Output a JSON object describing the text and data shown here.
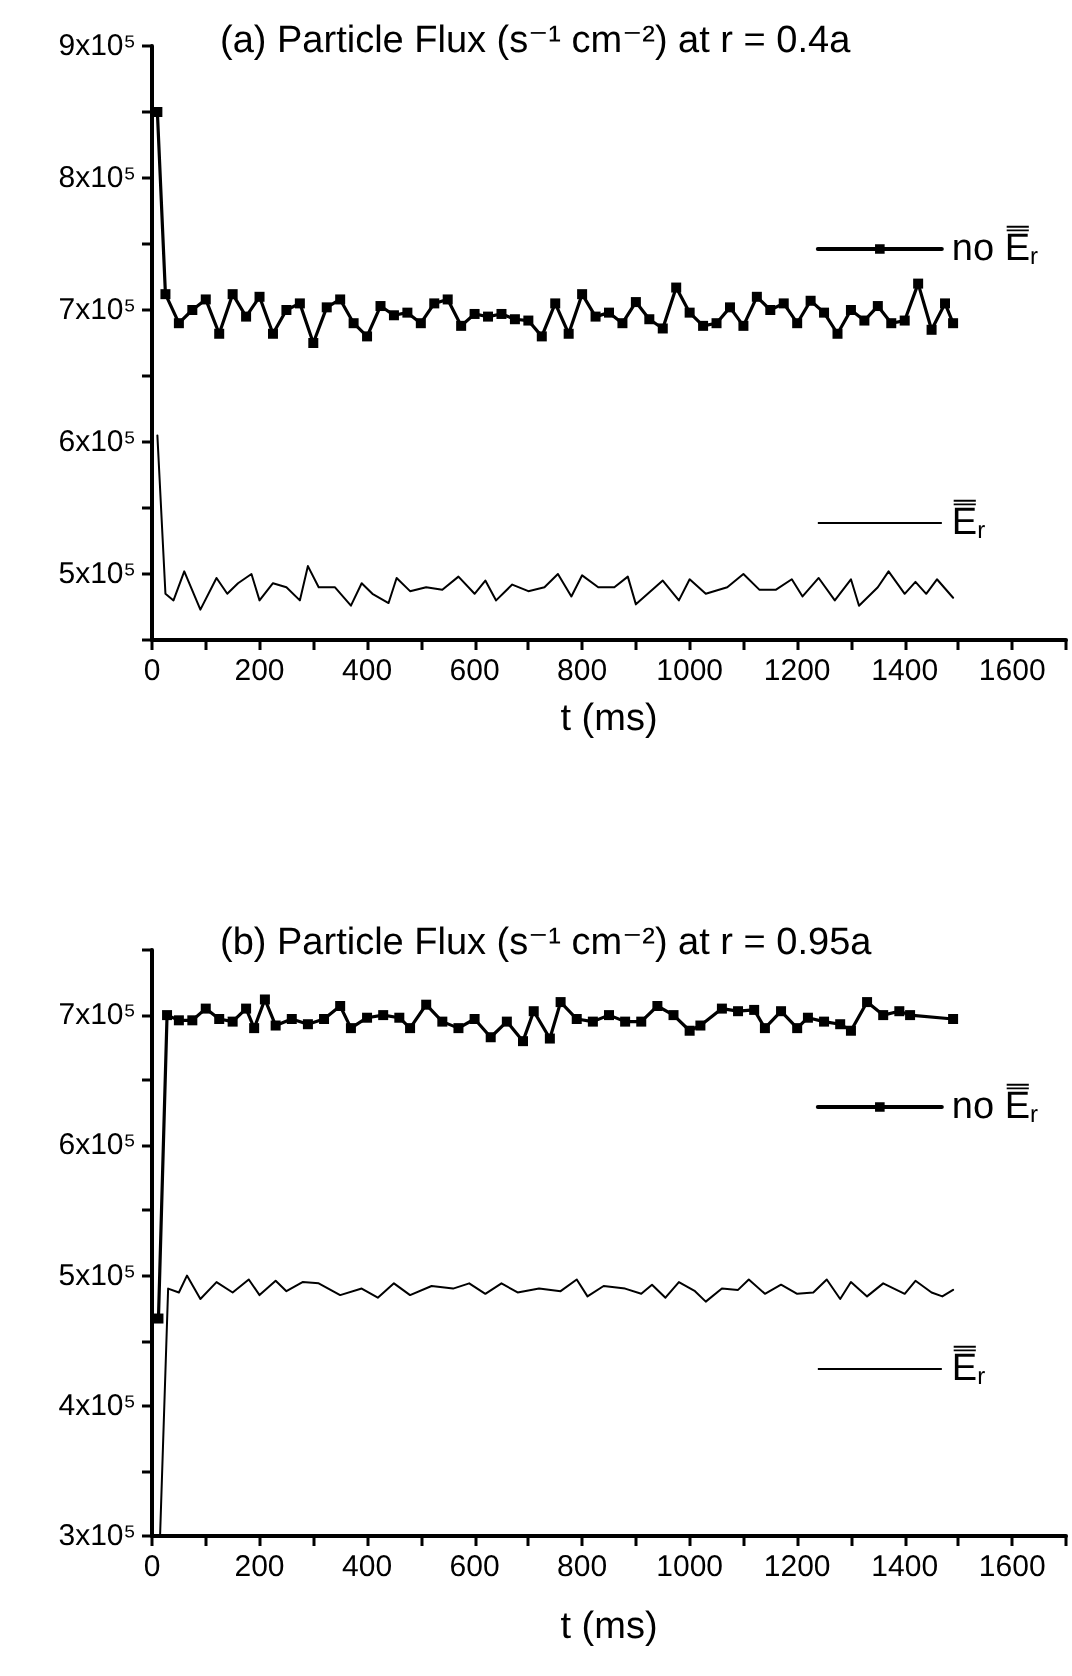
{
  "chart_data": [
    {
      "type": "line",
      "title": "(a) Particle Flux (s⁻¹ cm⁻²) at r = 0.4a",
      "xlabel": "t (ms)",
      "xlim": [
        0,
        1700
      ],
      "xticks": [
        0,
        {
          "value": 100,
          "label": null
        },
        200,
        {
          "value": 300,
          "label": null
        },
        400,
        {
          "value": 500,
          "label": null
        },
        600,
        {
          "value": 700,
          "label": null
        },
        800,
        {
          "value": 900,
          "label": null
        },
        1000,
        {
          "value": 1100,
          "label": null
        },
        1200,
        {
          "value": 1300,
          "label": null
        },
        1400,
        {
          "value": 1500,
          "label": null
        },
        1600,
        {
          "value": 1700,
          "label": null
        }
      ],
      "ylim": [
        450000,
        900000
      ],
      "yticks": [
        {
          "value": 450000,
          "label": null
        },
        {
          "value": 500000,
          "label": "5x10⁵"
        },
        {
          "value": 550000,
          "label": null
        },
        {
          "value": 600000,
          "label": "6x10⁵"
        },
        {
          "value": 650000,
          "label": null
        },
        {
          "value": 700000,
          "label": "7x10⁵"
        },
        {
          "value": 750000,
          "label": null
        },
        {
          "value": 800000,
          "label": "8x10⁵"
        },
        {
          "value": 850000,
          "label": null
        },
        {
          "value": 900000,
          "label": "9x10⁵"
        }
      ],
      "grid": false,
      "legend": "right",
      "series": [
        {
          "name": "no E̿$_{r}$",
          "color": "#000000",
          "marker": "square",
          "line_style": "solid",
          "x": [
            10,
            25,
            50,
            75,
            100,
            125,
            150,
            175,
            200,
            225,
            250,
            275,
            300,
            325,
            350,
            375,
            400,
            425,
            450,
            475,
            500,
            525,
            550,
            575,
            600,
            625,
            650,
            675,
            700,
            725,
            750,
            775,
            800,
            825,
            850,
            875,
            900,
            925,
            950,
            975,
            1000,
            1025,
            1050,
            1075,
            1100,
            1125,
            1150,
            1175,
            1200,
            1225,
            1250,
            1275,
            1300,
            1325,
            1350,
            1375,
            1400,
            1425,
            1450,
            1475,
            1490
          ],
          "values": [
            850000,
            712000,
            690000,
            700000,
            708000,
            682000,
            712000,
            695000,
            710000,
            682000,
            700000,
            705000,
            675000,
            702000,
            708000,
            690000,
            680000,
            703000,
            696000,
            698000,
            690000,
            705000,
            708000,
            688000,
            697000,
            695000,
            697000,
            693000,
            692000,
            680000,
            705000,
            682000,
            712000,
            695000,
            698000,
            690000,
            706000,
            693000,
            686000,
            717000,
            698000,
            688000,
            690000,
            702000,
            688000,
            710000,
            700000,
            705000,
            690000,
            707000,
            698000,
            682000,
            700000,
            692000,
            703000,
            690000,
            692000,
            720000,
            685000,
            705000,
            690000
          ]
        },
        {
          "name": "E̿$_{r}$",
          "color": "#000000",
          "marker": "none",
          "line_style": "solid",
          "x": [
            10,
            25,
            40,
            60,
            90,
            120,
            140,
            160,
            185,
            200,
            225,
            250,
            275,
            290,
            310,
            340,
            370,
            390,
            410,
            440,
            455,
            480,
            510,
            540,
            570,
            600,
            620,
            640,
            670,
            700,
            730,
            755,
            780,
            800,
            830,
            860,
            885,
            900,
            950,
            980,
            1000,
            1030,
            1070,
            1100,
            1130,
            1160,
            1190,
            1210,
            1240,
            1270,
            1300,
            1315,
            1350,
            1370,
            1400,
            1420,
            1440,
            1460,
            1490
          ],
          "values": [
            605000,
            485000,
            480000,
            502000,
            473000,
            497000,
            485000,
            493000,
            500000,
            480000,
            493000,
            490000,
            480000,
            506000,
            490000,
            490000,
            476000,
            493000,
            485000,
            478000,
            497000,
            487000,
            490000,
            488000,
            498000,
            485000,
            495000,
            480000,
            492000,
            487000,
            490000,
            500000,
            483000,
            499000,
            490000,
            490000,
            498000,
            477000,
            495000,
            480000,
            496000,
            485000,
            490000,
            500000,
            488000,
            488000,
            496000,
            483000,
            497000,
            480000,
            496000,
            476000,
            490000,
            502000,
            485000,
            494000,
            485000,
            496000,
            482000
          ]
        }
      ]
    },
    {
      "type": "line",
      "title": "(b) Particle Flux (s⁻¹ cm⁻²) at r = 0.95a",
      "xlabel": "t (ms)",
      "xlim": [
        0,
        1700
      ],
      "xticks": [
        0,
        {
          "value": 100,
          "label": null
        },
        200,
        {
          "value": 300,
          "label": null
        },
        400,
        {
          "value": 500,
          "label": null
        },
        600,
        {
          "value": 700,
          "label": null
        },
        800,
        {
          "value": 900,
          "label": null
        },
        1000,
        {
          "value": 1100,
          "label": null
        },
        1200,
        {
          "value": 1300,
          "label": null
        },
        1400,
        {
          "value": 1500,
          "label": null
        },
        1600,
        {
          "value": 1700,
          "label": null
        }
      ],
      "ylim": [
        300000,
        750000
      ],
      "yticks": [
        {
          "value": 300000,
          "label": "3x10⁵"
        },
        {
          "value": 350000,
          "label": null
        },
        {
          "value": 400000,
          "label": "4x10⁵"
        },
        {
          "value": 450000,
          "label": null
        },
        {
          "value": 500000,
          "label": "5x10⁵"
        },
        {
          "value": 550000,
          "label": null
        },
        {
          "value": 600000,
          "label": "6x10⁵"
        },
        {
          "value": 650000,
          "label": null
        },
        {
          "value": 700000,
          "label": "7x10⁵"
        },
        {
          "value": 750000,
          "label": null
        }
      ],
      "grid": false,
      "legend": "right",
      "series": [
        {
          "name": "no E̿$_{r}$",
          "color": "#000000",
          "marker": "square",
          "line_style": "solid",
          "x": [
            12,
            28,
            50,
            75,
            100,
            125,
            150,
            175,
            190,
            210,
            230,
            260,
            290,
            320,
            350,
            370,
            400,
            430,
            460,
            480,
            510,
            540,
            570,
            600,
            630,
            660,
            690,
            710,
            740,
            760,
            790,
            820,
            850,
            880,
            910,
            940,
            970,
            1000,
            1020,
            1060,
            1090,
            1120,
            1140,
            1170,
            1200,
            1220,
            1250,
            1280,
            1300,
            1330,
            1360,
            1390,
            1410,
            1490
          ],
          "values": [
            467000,
            700000,
            696000,
            696000,
            705000,
            697000,
            695000,
            705000,
            690000,
            712000,
            692000,
            697000,
            693000,
            697000,
            707000,
            690000,
            698000,
            700000,
            698000,
            690000,
            708000,
            695000,
            690000,
            697000,
            683000,
            695000,
            680000,
            703000,
            682000,
            710000,
            697000,
            695000,
            700000,
            695000,
            695000,
            707000,
            700000,
            688000,
            692000,
            705000,
            703000,
            704000,
            690000,
            703000,
            690000,
            698000,
            695000,
            693000,
            688000,
            710000,
            700000,
            703000,
            700000,
            697000
          ]
        },
        {
          "name": "E̿$_{r}$",
          "color": "#000000",
          "marker": "none",
          "line_style": "solid",
          "x": [
            15,
            30,
            50,
            65,
            90,
            120,
            150,
            180,
            200,
            230,
            250,
            280,
            310,
            350,
            390,
            420,
            450,
            480,
            520,
            560,
            590,
            620,
            650,
            680,
            720,
            760,
            790,
            810,
            840,
            880,
            910,
            930,
            955,
            980,
            1010,
            1030,
            1060,
            1090,
            1110,
            1140,
            1170,
            1200,
            1230,
            1255,
            1280,
            1300,
            1330,
            1360,
            1400,
            1420,
            1450,
            1470,
            1490
          ],
          "values": [
            300000,
            490000,
            487000,
            500000,
            482000,
            495000,
            487000,
            497000,
            485000,
            496000,
            488000,
            495000,
            494000,
            485000,
            490000,
            483000,
            494000,
            485000,
            492000,
            490000,
            494000,
            486000,
            494000,
            487000,
            490000,
            488000,
            497000,
            484000,
            492000,
            490000,
            486000,
            493000,
            483000,
            495000,
            488000,
            480000,
            490000,
            489000,
            497000,
            486000,
            493000,
            486000,
            487000,
            497000,
            482000,
            495000,
            484000,
            494000,
            486000,
            496000,
            487000,
            484000,
            489000
          ]
        }
      ]
    }
  ]
}
